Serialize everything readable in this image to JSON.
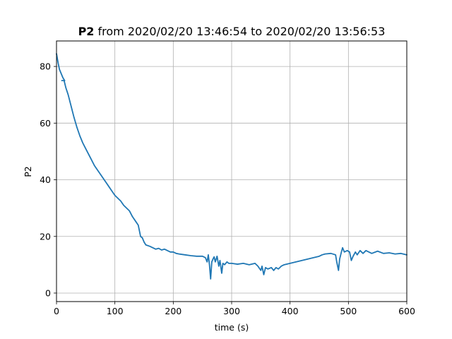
{
  "chart_data": {
    "type": "line",
    "title": {
      "bold": "P2",
      "rest": " from 2020/02/20 13:46:54 to 2020/02/20 13:56:53"
    },
    "xlabel": "time (s)",
    "ylabel": "P2",
    "xlim": [
      0,
      600
    ],
    "ylim": [
      -3,
      89
    ],
    "xticks": [
      0,
      100,
      200,
      300,
      400,
      500,
      600
    ],
    "yticks": [
      0,
      20,
      40,
      60,
      80
    ],
    "grid": true,
    "series": [
      {
        "color": "#1f77b4",
        "points": [
          [
            0,
            84.5
          ],
          [
            3,
            81
          ],
          [
            5,
            79
          ],
          [
            8,
            77.5
          ],
          [
            11,
            76
          ],
          [
            14,
            75
          ],
          [
            9,
            75
          ],
          [
            13,
            75
          ],
          [
            16,
            72.5
          ],
          [
            20,
            70
          ],
          [
            25,
            66
          ],
          [
            30,
            62
          ],
          [
            35,
            58.5
          ],
          [
            40,
            55.5
          ],
          [
            45,
            53
          ],
          [
            50,
            51
          ],
          [
            55,
            49
          ],
          [
            60,
            47
          ],
          [
            65,
            45
          ],
          [
            70,
            43.5
          ],
          [
            75,
            42
          ],
          [
            80,
            40.5
          ],
          [
            85,
            39
          ],
          [
            90,
            37.5
          ],
          [
            95,
            36
          ],
          [
            100,
            34.5
          ],
          [
            105,
            33.5
          ],
          [
            110,
            32.5
          ],
          [
            115,
            31
          ],
          [
            120,
            30
          ],
          [
            125,
            29
          ],
          [
            130,
            27
          ],
          [
            135,
            25.5
          ],
          [
            140,
            24
          ],
          [
            142,
            22
          ],
          [
            144,
            20
          ],
          [
            147,
            19.5
          ],
          [
            150,
            18
          ],
          [
            153,
            17
          ],
          [
            160,
            16.5
          ],
          [
            165,
            16
          ],
          [
            170,
            15.5
          ],
          [
            175,
            15.8
          ],
          [
            180,
            15.2
          ],
          [
            185,
            15.5
          ],
          [
            190,
            15
          ],
          [
            195,
            14.5
          ],
          [
            200,
            14.5
          ],
          [
            205,
            14
          ],
          [
            210,
            13.8
          ],
          [
            220,
            13.5
          ],
          [
            230,
            13.2
          ],
          [
            240,
            13
          ],
          [
            250,
            13
          ],
          [
            255,
            12.5
          ],
          [
            258,
            11
          ],
          [
            260,
            13.5
          ],
          [
            262,
            10
          ],
          [
            264,
            5
          ],
          [
            266,
            11
          ],
          [
            268,
            12
          ],
          [
            270,
            12.8
          ],
          [
            272,
            11
          ],
          [
            275,
            13
          ],
          [
            278,
            9.5
          ],
          [
            280,
            11.5
          ],
          [
            283,
            7
          ],
          [
            285,
            10.5
          ],
          [
            288,
            10
          ],
          [
            292,
            11
          ],
          [
            295,
            10.5
          ],
          [
            300,
            10.5
          ],
          [
            310,
            10.2
          ],
          [
            320,
            10.5
          ],
          [
            330,
            10
          ],
          [
            340,
            10.5
          ],
          [
            345,
            9.5
          ],
          [
            350,
            8
          ],
          [
            352,
            9.5
          ],
          [
            355,
            6.5
          ],
          [
            358,
            9
          ],
          [
            362,
            8.5
          ],
          [
            368,
            9
          ],
          [
            372,
            8
          ],
          [
            376,
            9
          ],
          [
            380,
            8.5
          ],
          [
            385,
            9.5
          ],
          [
            390,
            10
          ],
          [
            400,
            10.5
          ],
          [
            410,
            11
          ],
          [
            420,
            11.5
          ],
          [
            430,
            12
          ],
          [
            440,
            12.5
          ],
          [
            450,
            13
          ],
          [
            455,
            13.5
          ],
          [
            460,
            13.8
          ],
          [
            470,
            14
          ],
          [
            478,
            13.5
          ],
          [
            480,
            11
          ],
          [
            483,
            8
          ],
          [
            485,
            12
          ],
          [
            488,
            14.5
          ],
          [
            490,
            16
          ],
          [
            493,
            14.5
          ],
          [
            498,
            15
          ],
          [
            502,
            14.5
          ],
          [
            505,
            11.5
          ],
          [
            508,
            13
          ],
          [
            512,
            14.5
          ],
          [
            515,
            13.5
          ],
          [
            520,
            15
          ],
          [
            525,
            14
          ],
          [
            530,
            15
          ],
          [
            535,
            14.5
          ],
          [
            540,
            14
          ],
          [
            550,
            14.8
          ],
          [
            560,
            14
          ],
          [
            570,
            14.2
          ],
          [
            580,
            13.8
          ],
          [
            590,
            14
          ],
          [
            600,
            13.5
          ]
        ]
      }
    ]
  }
}
